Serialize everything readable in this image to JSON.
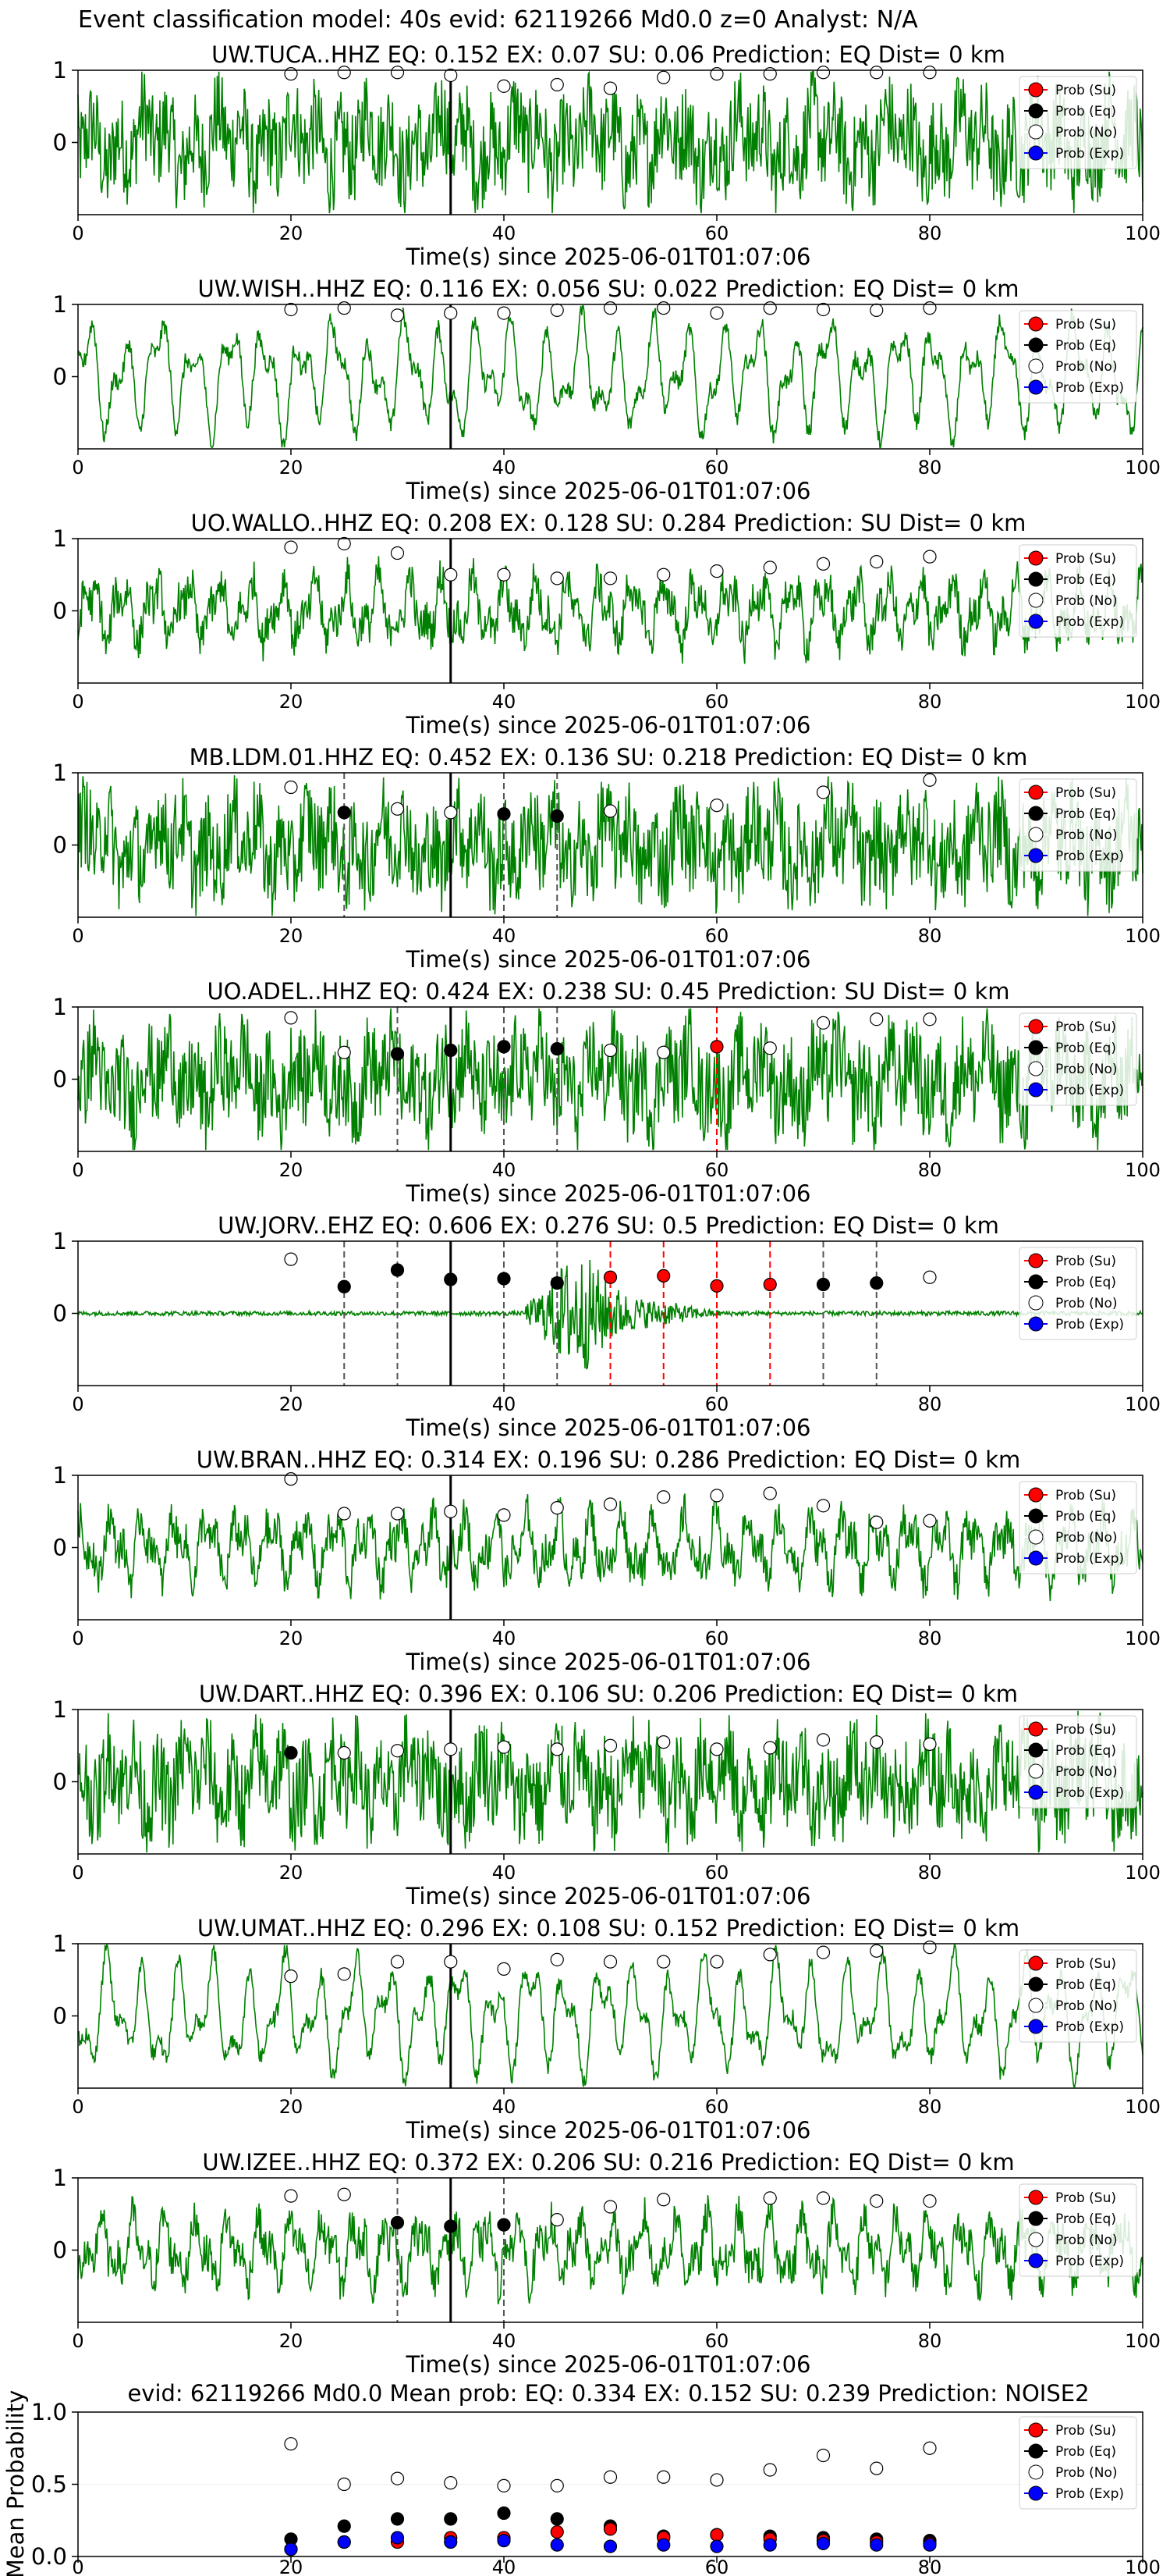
{
  "figure_title": "Event classification model: 40s evid: 62119266 Md0.0 z=0 Analyst: N/A",
  "colors": {
    "waveform": "#008000",
    "su": "#ff0000",
    "eq": "#000000",
    "no": "#ffffff",
    "exp": "#0000ff",
    "eq_pick": "#555555",
    "su_pick": "#ff0000"
  },
  "legend": [
    "Prob (Su)",
    "Prob (Eq)",
    "Prob (No)",
    "Prob (Exp)"
  ],
  "chart_data": [
    {
      "type": "line",
      "title": "UW.TUCA..HHZ   EQ: 0.152  EX: 0.07  SU: 0.06   Prediction: EQ    Dist= 0 km",
      "xlabel": "Time(s) since 2025-06-01T01:07:06",
      "xlim": [
        0,
        100
      ],
      "ylim": [
        -1,
        1
      ],
      "yticks": [
        0,
        1
      ],
      "xticks": [
        0,
        20,
        40,
        60,
        80,
        100
      ],
      "waveform": "noisy",
      "marker_line": 35,
      "no_prob": {
        "x": [
          20,
          25,
          30,
          35,
          40,
          45,
          50,
          55,
          60,
          65,
          70,
          75,
          80
        ],
        "y": [
          0.95,
          0.97,
          0.97,
          0.93,
          0.78,
          0.8,
          0.75,
          0.9,
          0.95,
          0.95,
          0.97,
          0.97,
          0.97
        ]
      },
      "eq_prob": {
        "x": [],
        "y": []
      },
      "su_prob": {
        "x": [],
        "y": []
      },
      "eq_picks": [],
      "su_picks": []
    },
    {
      "type": "line",
      "title": "UW.WISH..HHZ   EQ: 0.116  EX: 0.056  SU: 0.022   Prediction: EQ    Dist= 0 km",
      "xlabel": "Time(s) since 2025-06-01T01:07:06",
      "xlim": [
        0,
        100
      ],
      "ylim": [
        -1,
        1
      ],
      "yticks": [
        0,
        1
      ],
      "xticks": [
        0,
        20,
        40,
        60,
        80,
        100
      ],
      "waveform": "smooth",
      "marker_line": 35,
      "no_prob": {
        "x": [
          20,
          25,
          30,
          35,
          40,
          45,
          50,
          55,
          60,
          65,
          70,
          75,
          80
        ],
        "y": [
          0.93,
          0.95,
          0.85,
          0.88,
          0.88,
          0.92,
          0.95,
          0.95,
          0.88,
          0.95,
          0.93,
          0.92,
          0.95
        ]
      },
      "eq_prob": {
        "x": [],
        "y": []
      },
      "su_prob": {
        "x": [],
        "y": []
      },
      "eq_picks": [],
      "su_picks": []
    },
    {
      "type": "line",
      "title": "UO.WALLO..HHZ   EQ: 0.208  EX: 0.128  SU: 0.284   Prediction: SU    Dist= 0 km",
      "xlabel": "Time(s) since 2025-06-01T01:07:06",
      "xlim": [
        0,
        100
      ],
      "ylim": [
        -1,
        1
      ],
      "yticks": [
        0,
        1
      ],
      "xticks": [
        0,
        20,
        40,
        60,
        80,
        100
      ],
      "waveform": "medium",
      "marker_line": 35,
      "no_prob": {
        "x": [
          20,
          25,
          30,
          35,
          40,
          45,
          50,
          55,
          60,
          65,
          70,
          75,
          80
        ],
        "y": [
          0.88,
          0.93,
          0.8,
          0.5,
          0.5,
          0.45,
          0.45,
          0.5,
          0.55,
          0.6,
          0.65,
          0.68,
          0.75
        ]
      },
      "eq_prob": {
        "x": [],
        "y": []
      },
      "su_prob": {
        "x": [],
        "y": []
      },
      "eq_picks": [],
      "su_picks": []
    },
    {
      "type": "line",
      "title": "MB.LDM.01.HHZ   EQ: 0.452  EX: 0.136  SU: 0.218   Prediction: EQ    Dist= 0 km",
      "xlabel": "Time(s) since 2025-06-01T01:07:06",
      "xlim": [
        0,
        100
      ],
      "ylim": [
        -1,
        1
      ],
      "yticks": [
        0,
        1
      ],
      "xticks": [
        0,
        20,
        40,
        60,
        80,
        100
      ],
      "waveform": "noisy",
      "marker_line": 35,
      "no_prob": {
        "x": [
          20,
          30,
          35,
          50,
          60,
          70,
          80
        ],
        "y": [
          0.8,
          0.5,
          0.45,
          0.47,
          0.55,
          0.73,
          0.9
        ]
      },
      "eq_prob": {
        "x": [
          25,
          40,
          45
        ],
        "y": [
          0.45,
          0.43,
          0.4
        ]
      },
      "su_prob": {
        "x": [],
        "y": []
      },
      "eq_picks": [
        25,
        40,
        45
      ],
      "su_picks": []
    },
    {
      "type": "line",
      "title": "UO.ADEL..HHZ   EQ: 0.424  EX: 0.238  SU: 0.45   Prediction: SU    Dist= 0 km",
      "xlabel": "Time(s) since 2025-06-01T01:07:06",
      "xlim": [
        0,
        100
      ],
      "ylim": [
        -1,
        1
      ],
      "yticks": [
        0,
        1
      ],
      "xticks": [
        0,
        20,
        40,
        60,
        80,
        100
      ],
      "waveform": "noisy",
      "marker_line": 35,
      "no_prob": {
        "x": [
          20,
          25,
          50,
          55,
          65,
          70,
          75,
          80
        ],
        "y": [
          0.85,
          0.37,
          0.4,
          0.37,
          0.43,
          0.78,
          0.83,
          0.83
        ]
      },
      "eq_prob": {
        "x": [
          30,
          35,
          40,
          45
        ],
        "y": [
          0.35,
          0.4,
          0.45,
          0.42
        ]
      },
      "su_prob": {
        "x": [
          60
        ],
        "y": [
          0.45
        ]
      },
      "eq_picks": [
        30,
        40,
        45
      ],
      "su_picks": [
        60
      ]
    },
    {
      "type": "line",
      "title": "UW.JORV..EHZ   EQ: 0.606  EX: 0.276  SU: 0.5   Prediction: EQ    Dist= 0 km",
      "xlabel": "Time(s) since 2025-06-01T01:07:06",
      "xlim": [
        0,
        100
      ],
      "ylim": [
        -1,
        1
      ],
      "yticks": [
        0,
        1
      ],
      "xticks": [
        0,
        20,
        40,
        60,
        80,
        100
      ],
      "waveform": "burst",
      "marker_line": 35,
      "no_prob": {
        "x": [
          20,
          80
        ],
        "y": [
          0.75,
          0.5
        ]
      },
      "eq_prob": {
        "x": [
          25,
          30,
          35,
          40,
          45,
          70,
          75
        ],
        "y": [
          0.37,
          0.6,
          0.47,
          0.48,
          0.42,
          0.4,
          0.42
        ]
      },
      "su_prob": {
        "x": [
          50,
          55,
          60,
          65
        ],
        "y": [
          0.5,
          0.52,
          0.38,
          0.4
        ]
      },
      "eq_picks": [
        25,
        30,
        40,
        45,
        70,
        75
      ],
      "su_picks": [
        50,
        55,
        60,
        65
      ]
    },
    {
      "type": "line",
      "title": "UW.BRAN..HHZ   EQ: 0.314  EX: 0.196  SU: 0.286   Prediction: EQ    Dist= 0 km",
      "xlabel": "Time(s) since 2025-06-01T01:07:06",
      "xlim": [
        0,
        100
      ],
      "ylim": [
        -1,
        1
      ],
      "yticks": [
        0,
        1
      ],
      "xticks": [
        0,
        20,
        40,
        60,
        80,
        100
      ],
      "waveform": "medium",
      "marker_line": 35,
      "no_prob": {
        "x": [
          20,
          25,
          30,
          35,
          40,
          45,
          50,
          55,
          60,
          65,
          70,
          75,
          80
        ],
        "y": [
          0.95,
          0.47,
          0.47,
          0.5,
          0.45,
          0.55,
          0.6,
          0.7,
          0.72,
          0.75,
          0.58,
          0.35,
          0.37
        ]
      },
      "eq_prob": {
        "x": [],
        "y": []
      },
      "su_prob": {
        "x": [],
        "y": []
      },
      "eq_picks": [],
      "su_picks": []
    },
    {
      "type": "line",
      "title": "UW.DART..HHZ   EQ: 0.396  EX: 0.106  SU: 0.206   Prediction: EQ    Dist= 0 km",
      "xlabel": "Time(s) since 2025-06-01T01:07:06",
      "xlim": [
        0,
        100
      ],
      "ylim": [
        -1,
        1
      ],
      "yticks": [
        0,
        1
      ],
      "xticks": [
        0,
        20,
        40,
        60,
        80,
        100
      ],
      "waveform": "noisy",
      "marker_line": 35,
      "no_prob": {
        "x": [
          25,
          30,
          35,
          40,
          45,
          50,
          55,
          60,
          65,
          70,
          75,
          80
        ],
        "y": [
          0.4,
          0.43,
          0.45,
          0.48,
          0.45,
          0.5,
          0.55,
          0.45,
          0.47,
          0.58,
          0.55,
          0.52
        ]
      },
      "eq_prob": {
        "x": [
          20
        ],
        "y": [
          0.4
        ]
      },
      "su_prob": {
        "x": [],
        "y": []
      },
      "eq_picks": [],
      "su_picks": []
    },
    {
      "type": "line",
      "title": "UW.UMAT..HHZ   EQ: 0.296  EX: 0.108  SU: 0.152   Prediction: EQ    Dist= 0 km",
      "xlabel": "Time(s) since 2025-06-01T01:07:06",
      "xlim": [
        0,
        100
      ],
      "ylim": [
        -1,
        1
      ],
      "yticks": [
        0,
        1
      ],
      "xticks": [
        0,
        20,
        40,
        60,
        80,
        100
      ],
      "waveform": "smooth",
      "marker_line": 35,
      "no_prob": {
        "x": [
          20,
          25,
          30,
          35,
          40,
          45,
          50,
          55,
          60,
          65,
          70,
          75,
          80
        ],
        "y": [
          0.55,
          0.58,
          0.75,
          0.75,
          0.65,
          0.78,
          0.75,
          0.75,
          0.75,
          0.85,
          0.88,
          0.9,
          0.95
        ]
      },
      "eq_prob": {
        "x": [],
        "y": []
      },
      "su_prob": {
        "x": [],
        "y": []
      },
      "eq_picks": [],
      "su_picks": []
    },
    {
      "type": "line",
      "title": "UW.IZEE..HHZ   EQ: 0.372  EX: 0.206  SU: 0.216   Prediction: EQ    Dist= 0 km",
      "xlabel": "Time(s) since 2025-06-01T01:07:06",
      "xlim": [
        0,
        100
      ],
      "ylim": [
        -1,
        1
      ],
      "yticks": [
        0,
        1
      ],
      "xticks": [
        0,
        20,
        40,
        60,
        80,
        100
      ],
      "waveform": "medium",
      "marker_line": 35,
      "no_prob": {
        "x": [
          20,
          25,
          45,
          50,
          55,
          65,
          70,
          75,
          80
        ],
        "y": [
          0.75,
          0.77,
          0.42,
          0.6,
          0.7,
          0.72,
          0.72,
          0.68,
          0.68
        ]
      },
      "eq_prob": {
        "x": [
          30,
          35,
          40
        ],
        "y": [
          0.38,
          0.33,
          0.35
        ]
      },
      "su_prob": {
        "x": [],
        "y": []
      },
      "eq_picks": [
        30,
        40
      ],
      "su_picks": []
    },
    {
      "type": "scatter",
      "title": "evid: 62119266   Md0.0   Mean prob:   EQ: 0.334  EX: 0.152  SU: 0.239   Prediction: NOISE2",
      "xlabel": "",
      "ylabel": "Mean Probability",
      "xlim": [
        0,
        100
      ],
      "ylim": [
        0,
        1
      ],
      "yticks": [
        0,
        0.5,
        1
      ],
      "ytick_labels": [
        "0.0",
        "0.5",
        "1.0"
      ],
      "xticks": [
        0,
        20,
        40,
        60,
        80,
        100
      ],
      "series": [
        {
          "name": "Prob (No)",
          "x": [
            20,
            25,
            30,
            35,
            40,
            45,
            50,
            55,
            60,
            65,
            70,
            75,
            80
          ],
          "y": [
            0.78,
            0.5,
            0.54,
            0.51,
            0.49,
            0.49,
            0.55,
            0.55,
            0.53,
            0.6,
            0.7,
            0.61,
            0.75
          ]
        },
        {
          "name": "Prob (Eq)",
          "x": [
            20,
            25,
            30,
            35,
            40,
            45,
            50,
            55,
            60,
            65,
            70,
            75,
            80
          ],
          "y": [
            0.12,
            0.21,
            0.26,
            0.26,
            0.3,
            0.26,
            0.21,
            0.14,
            0.15,
            0.14,
            0.13,
            0.12,
            0.11
          ]
        },
        {
          "name": "Prob (Su)",
          "x": [
            20,
            25,
            30,
            35,
            40,
            45,
            50,
            55,
            60,
            65,
            70,
            75,
            80
          ],
          "y": [
            0.05,
            0.1,
            0.1,
            0.13,
            0.13,
            0.17,
            0.19,
            0.13,
            0.15,
            0.12,
            0.11,
            0.1,
            0.09
          ]
        },
        {
          "name": "Prob (Exp)",
          "x": [
            20,
            25,
            30,
            35,
            40,
            45,
            50,
            55,
            60,
            65,
            70,
            75,
            80
          ],
          "y": [
            0.05,
            0.1,
            0.13,
            0.1,
            0.11,
            0.08,
            0.07,
            0.08,
            0.07,
            0.08,
            0.09,
            0.08,
            0.08
          ]
        }
      ]
    }
  ]
}
